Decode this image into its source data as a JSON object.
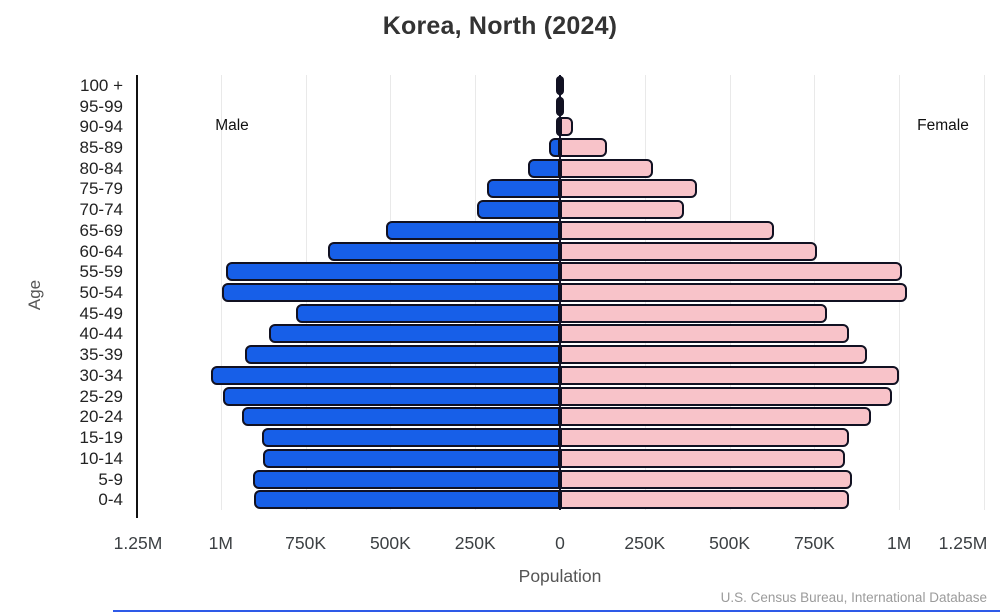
{
  "title": "Korea, North (2024)",
  "labels": {
    "male": "Male",
    "female": "Female",
    "age_axis": "Age",
    "population_axis": "Population"
  },
  "footer": "U.S. Census Bureau, International Database",
  "colors": {
    "male_bar": "#175fe8",
    "female_bar": "#f8c3c9",
    "bar_border": "#111122",
    "axis_line": "#111111",
    "gridline": "#e9e9e9",
    "accent_line": "#2e5ae8"
  },
  "chart_data": {
    "type": "bar",
    "subtype": "population-pyramid",
    "title": "Korea, North (2024)",
    "xlabel": "Population",
    "ylabel": "Age",
    "grid": true,
    "xlim": [
      -1250000,
      1250000
    ],
    "age_groups": [
      "100 +",
      "95-99",
      "90-94",
      "85-89",
      "80-84",
      "75-79",
      "70-74",
      "65-69",
      "60-64",
      "55-59",
      "50-54",
      "45-49",
      "40-44",
      "35-39",
      "30-34",
      "25-29",
      "20-24",
      "15-19",
      "10-14",
      "5-9",
      "0-4"
    ],
    "series": [
      {
        "name": "Male",
        "side": "left",
        "values": [
          1000,
          3000,
          10000,
          33000,
          95000,
          214000,
          246000,
          513000,
          685000,
          985000,
          997000,
          777000,
          857000,
          928000,
          1029000,
          994000,
          937000,
          880000,
          875000,
          905000,
          903000
        ]
      },
      {
        "name": "Female",
        "side": "right",
        "values": [
          3000,
          10000,
          38000,
          139000,
          275000,
          405000,
          365000,
          630000,
          759000,
          1008000,
          1023000,
          786000,
          851000,
          904000,
          999000,
          979000,
          916000,
          851000,
          839000,
          860000,
          851000
        ]
      }
    ],
    "x_ticks": [
      {
        "label": "1.25M",
        "value": -1250000
      },
      {
        "label": "1M",
        "value": -1000000
      },
      {
        "label": "750K",
        "value": -750000
      },
      {
        "label": "500K",
        "value": -500000
      },
      {
        "label": "250K",
        "value": -250000
      },
      {
        "label": "0",
        "value": 0
      },
      {
        "label": "250K",
        "value": 250000
      },
      {
        "label": "500K",
        "value": 500000
      },
      {
        "label": "750K",
        "value": 750000
      },
      {
        "label": "1M",
        "value": 1000000
      },
      {
        "label": "1.25M",
        "value": 1250000
      }
    ]
  }
}
